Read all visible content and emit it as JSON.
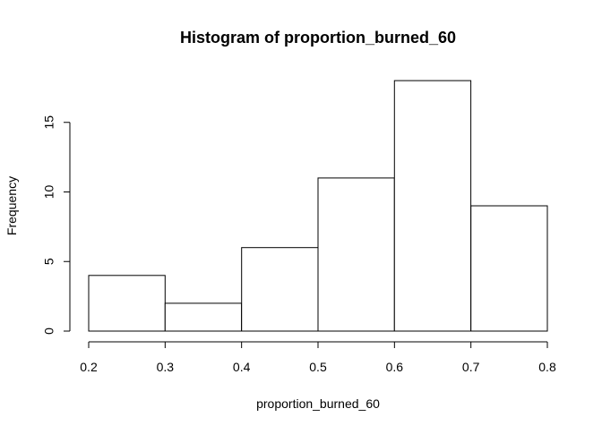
{
  "chart_data": {
    "type": "bar",
    "title": "Histogram of proportion_burned_60",
    "xlabel": "proportion_burned_60",
    "ylabel": "Frequency",
    "bins": [
      {
        "start": 0.2,
        "end": 0.3,
        "count": 4
      },
      {
        "start": 0.3,
        "end": 0.4,
        "count": 2
      },
      {
        "start": 0.4,
        "end": 0.5,
        "count": 6
      },
      {
        "start": 0.5,
        "end": 0.6,
        "count": 11
      },
      {
        "start": 0.6,
        "end": 0.7,
        "count": 18
      },
      {
        "start": 0.7,
        "end": 0.8,
        "count": 9
      }
    ],
    "xticks": [
      "0.2",
      "0.3",
      "0.4",
      "0.5",
      "0.6",
      "0.7",
      "0.8"
    ],
    "yticks": [
      "0",
      "5",
      "10",
      "15"
    ],
    "xlim": [
      0.2,
      0.8
    ],
    "ylim": [
      0,
      18
    ],
    "grid": false,
    "colors": {
      "bar_fill": "#ffffff",
      "bar_stroke": "#000000"
    }
  }
}
